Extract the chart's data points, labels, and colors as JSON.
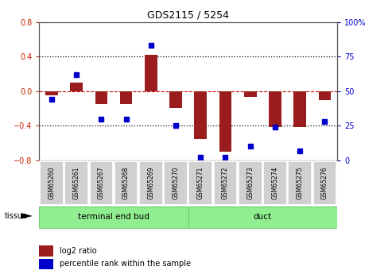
{
  "title": "GDS2115 / 5254",
  "samples": [
    "GSM65260",
    "GSM65261",
    "GSM65267",
    "GSM65268",
    "GSM65269",
    "GSM65270",
    "GSM65271",
    "GSM65272",
    "GSM65273",
    "GSM65274",
    "GSM65275",
    "GSM65276"
  ],
  "log2_ratio": [
    -0.05,
    0.1,
    -0.15,
    -0.15,
    0.42,
    -0.2,
    -0.55,
    -0.7,
    -0.07,
    -0.42,
    -0.42,
    -0.1
  ],
  "percentile_rank": [
    44,
    62,
    30,
    30,
    83,
    25,
    2,
    2,
    10,
    24,
    7,
    28
  ],
  "groups": [
    {
      "label": "terminal end bud",
      "indices": [
        0,
        5
      ]
    },
    {
      "label": "duct",
      "indices": [
        6,
        11
      ]
    }
  ],
  "bar_color": "#9b1c1c",
  "dot_color": "#0000cc",
  "zero_line_color": "#cc0000",
  "dotted_line_color": "#000000",
  "ylim_left": [
    -0.8,
    0.8
  ],
  "ylim_right": [
    0,
    100
  ],
  "yticks_left": [
    -0.8,
    -0.4,
    0.0,
    0.4,
    0.8
  ],
  "yticks_right": [
    0,
    25,
    50,
    75,
    100
  ],
  "tissue_label": "tissue",
  "legend_log2_label": "log2 ratio",
  "legend_pct_label": "percentile rank within the sample",
  "bg_color": "#ffffff",
  "tick_label_color_left": "#cc2200",
  "tick_label_color_right": "#0000cc",
  "sample_box_color": "#d0d0d0",
  "group_box_color": "#90ee90",
  "group_box_edge": "#70cc70",
  "bar_width": 0.5
}
